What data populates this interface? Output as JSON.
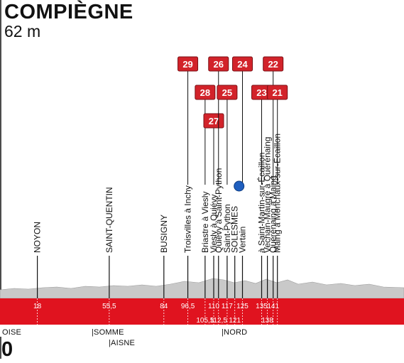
{
  "header": {
    "finish_town": "COMPIÈGNE",
    "finish_altitude": "62 m"
  },
  "start_distance": "0",
  "departments": [
    {
      "label": "OISE"
    },
    {
      "label": "|SOMME"
    },
    {
      "label": "|AISNE"
    },
    {
      "label": "|NORD"
    }
  ],
  "colors": {
    "band": "#e0131f",
    "sector_badge": "#d2232a",
    "terrain": "#c9c9c9",
    "ink": "#111111",
    "feed_zone": "#1f5fbf"
  },
  "places": [
    {
      "km": 18,
      "km_label": "18",
      "name": "NOYON",
      "row": 0
    },
    {
      "km": 55.5,
      "km_label": "55,5",
      "name": "SAINT-QUENTIN",
      "row": 0
    },
    {
      "km": 84,
      "km_label": "84",
      "name": "BUSIGNY",
      "row": 0
    },
    {
      "km": 96.5,
      "km_label": "96,5",
      "name": "Troisvilles à Inchy",
      "row": 0,
      "sector": "29"
    },
    {
      "km": 105.5,
      "km_label": "105,5",
      "name": "Briastre à Viesly",
      "row": 1,
      "sector": "28"
    },
    {
      "km": 110,
      "km_label": "110",
      "name": "Viesly à Quiévy",
      "row": 0,
      "sector": "27"
    },
    {
      "km": 112.5,
      "km_label": "112,5",
      "name": "Quiévy à Saint-Python",
      "row": 1,
      "sector": "26"
    },
    {
      "km": 117,
      "km_label": "117",
      "name": "Saint-Python",
      "row": 0,
      "sector": "25"
    },
    {
      "km": 121,
      "km_label": "121",
      "name": "SOLESMES",
      "row": 1
    },
    {
      "km": 125,
      "km_label": "125",
      "name": "Vertain",
      "row": 0,
      "sector": "24"
    },
    {
      "km": 135,
      "km_label": "135",
      "name": "à Saint-Martin-sur-Écaillon",
      "row": 0,
      "sector": "23"
    },
    {
      "km": 138,
      "km_label": "138",
      "name": "Vechain-Maugré à Quérénaing",
      "row": 1
    },
    {
      "km": 141,
      "km_label": "141",
      "name": "Quérénaing à Maing",
      "row": 0,
      "sector": "22"
    },
    {
      "km": 141,
      "km_label": "",
      "name": "Maing à Monchaux-sur-Écaillon",
      "row": 0,
      "sector": "21"
    }
  ]
}
